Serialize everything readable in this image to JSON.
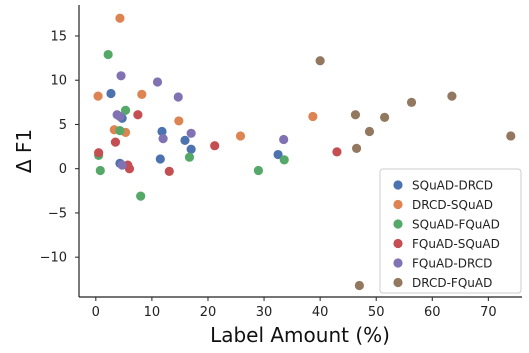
{
  "chart_data": {
    "type": "scatter",
    "title": "",
    "xlabel": "Label Amount (%)",
    "ylabel": "Δ F1",
    "xlim": [
      -3,
      76
    ],
    "ylim": [
      -14.5,
      18.5
    ],
    "xticks": [
      0,
      10,
      20,
      30,
      40,
      50,
      60,
      70
    ],
    "yticks": [
      -10,
      -5,
      0,
      5,
      10,
      15
    ],
    "grid": false,
    "legend_position": "bottom-right",
    "series": [
      {
        "name": "SQuAD-DRCD",
        "color": "#4c72b0",
        "points": [
          {
            "x": 2.7,
            "y": 8.5
          },
          {
            "x": 4.7,
            "y": 5.7
          },
          {
            "x": 11.8,
            "y": 4.2
          },
          {
            "x": 15.9,
            "y": 3.2
          },
          {
            "x": 17.0,
            "y": 2.2
          },
          {
            "x": 11.5,
            "y": 1.1
          },
          {
            "x": 4.3,
            "y": 0.6
          },
          {
            "x": 32.5,
            "y": 1.6
          }
        ]
      },
      {
        "name": "DRCD-SQuAD",
        "color": "#dd8452",
        "points": [
          {
            "x": 4.3,
            "y": 17.0
          },
          {
            "x": 0.4,
            "y": 8.2
          },
          {
            "x": 8.2,
            "y": 8.4
          },
          {
            "x": 3.3,
            "y": 4.4
          },
          {
            "x": 5.3,
            "y": 4.1
          },
          {
            "x": 14.8,
            "y": 5.4
          },
          {
            "x": 25.8,
            "y": 3.7
          },
          {
            "x": 38.7,
            "y": 5.9
          }
        ]
      },
      {
        "name": "SQuAD-FQuAD",
        "color": "#55a868",
        "points": [
          {
            "x": 2.2,
            "y": 12.9
          },
          {
            "x": 5.3,
            "y": 6.6
          },
          {
            "x": 4.3,
            "y": 4.3
          },
          {
            "x": 0.5,
            "y": 1.5
          },
          {
            "x": 0.8,
            "y": -0.2
          },
          {
            "x": 8.0,
            "y": -3.1
          },
          {
            "x": 16.7,
            "y": 1.3
          },
          {
            "x": 29.0,
            "y": -0.2
          },
          {
            "x": 33.6,
            "y": 1.0
          }
        ]
      },
      {
        "name": "FQuAD-SQuAD",
        "color": "#c44e52",
        "points": [
          {
            "x": 0.5,
            "y": 1.8
          },
          {
            "x": 3.5,
            "y": 3.0
          },
          {
            "x": 7.5,
            "y": 6.1
          },
          {
            "x": 5.7,
            "y": 0.4
          },
          {
            "x": 6.0,
            "y": 0.0
          },
          {
            "x": 13.1,
            "y": -0.3
          },
          {
            "x": 21.2,
            "y": 2.6
          },
          {
            "x": 43.0,
            "y": 1.9
          }
        ]
      },
      {
        "name": "FQuAD-DRCD",
        "color": "#8172b3",
        "points": [
          {
            "x": 4.5,
            "y": 10.5
          },
          {
            "x": 11.0,
            "y": 9.8
          },
          {
            "x": 14.7,
            "y": 8.1
          },
          {
            "x": 3.8,
            "y": 6.1
          },
          {
            "x": 4.3,
            "y": 5.9
          },
          {
            "x": 17.0,
            "y": 4.0
          },
          {
            "x": 12.0,
            "y": 3.4
          },
          {
            "x": 4.7,
            "y": 0.4
          },
          {
            "x": 33.5,
            "y": 3.3
          }
        ]
      },
      {
        "name": "DRCD-FQuAD",
        "color": "#937860",
        "points": [
          {
            "x": 40.0,
            "y": 12.2
          },
          {
            "x": 46.3,
            "y": 6.1
          },
          {
            "x": 48.8,
            "y": 4.2
          },
          {
            "x": 51.5,
            "y": 5.8
          },
          {
            "x": 56.3,
            "y": 7.5
          },
          {
            "x": 63.5,
            "y": 8.2
          },
          {
            "x": 74.0,
            "y": 3.7
          },
          {
            "x": 46.5,
            "y": 2.3
          },
          {
            "x": 47.0,
            "y": -13.2
          }
        ]
      }
    ]
  }
}
